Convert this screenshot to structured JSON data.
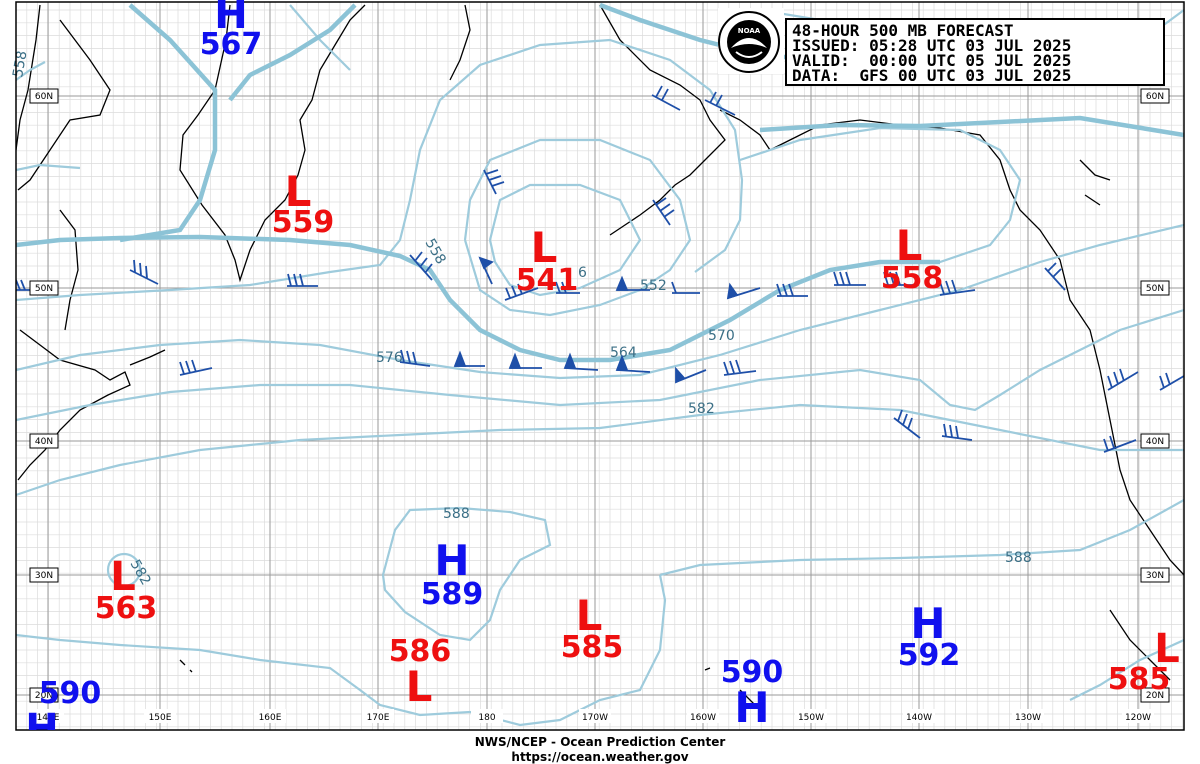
{
  "header": {
    "title": "48-HOUR 500 MB FORECAST",
    "issued": "ISSUED: 05:28 UTC 03 JUL 2025",
    "valid": "VALID:  00:00 UTC 05 JUL 2025",
    "data": "DATA:  GFS 00 UTC 03 JUL 2025",
    "logo_text": "NOAA"
  },
  "footer": {
    "line1": "NWS/NCEP - Ocean Prediction Center",
    "line2": "https://ocean.weather.gov"
  },
  "longitude_labels": [
    "140E",
    "150E",
    "160E",
    "170E",
    "180",
    "170W",
    "160W",
    "150W",
    "140W",
    "130W",
    "120W"
  ],
  "latitude_labels_left": [
    "60N",
    "50N",
    "40N",
    "30N",
    "20N"
  ],
  "latitude_labels_right": [
    "60N",
    "50N",
    "40N",
    "30N",
    "20N"
  ],
  "pressure_centers": [
    {
      "type": "H",
      "value": "567"
    },
    {
      "type": "L",
      "value": "559"
    },
    {
      "type": "L",
      "value": "541"
    },
    {
      "type": "L",
      "value": "558"
    },
    {
      "type": "L",
      "value": "563"
    },
    {
      "type": "H",
      "value": "589"
    },
    {
      "type": "L",
      "value": "586"
    },
    {
      "type": "L",
      "value": "585"
    },
    {
      "type": "H",
      "value": "590"
    },
    {
      "type": "H",
      "value": "592"
    },
    {
      "type": "L",
      "value": "585"
    },
    {
      "type": "H",
      "value": "590"
    }
  ],
  "contour_labels": [
    "558",
    "558",
    "6",
    "552",
    "564",
    "570",
    "576",
    "582",
    "588",
    "582",
    "588"
  ],
  "colors": {
    "contour": "#9ecbdc",
    "contour_label": "#3b6f86",
    "coast": "#000000",
    "grid_major": "#a0a0a0",
    "grid_minor": "#dcdcdc",
    "high": "#1010ee",
    "low": "#ee1010",
    "wind_barb": "#1e4fa8"
  }
}
